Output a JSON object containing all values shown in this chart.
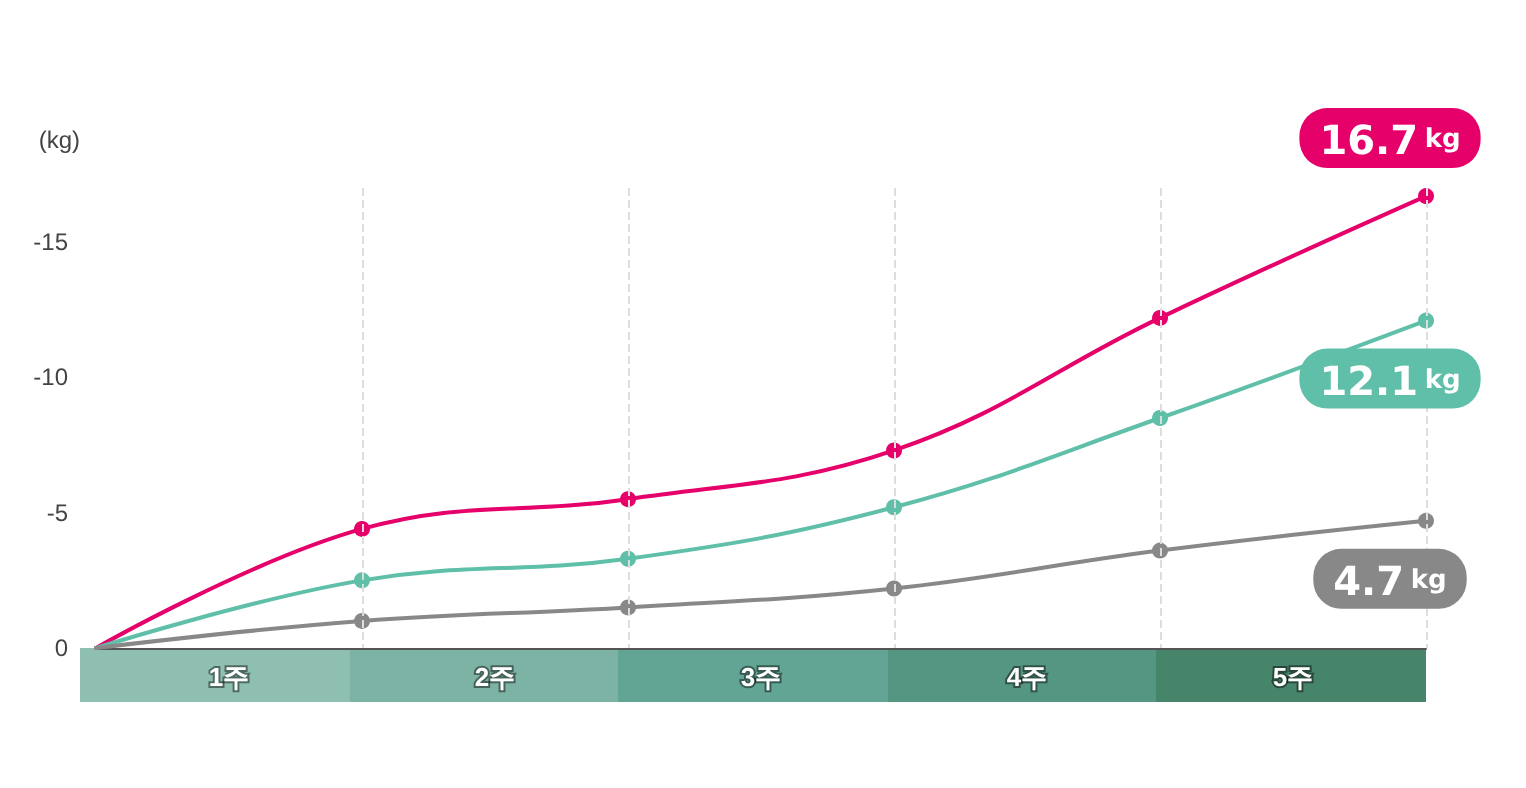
{
  "chart_data": {
    "type": "line",
    "ylabel": "(kg)",
    "x": [
      0,
      1,
      2,
      3,
      4,
      5
    ],
    "xlim": [
      0,
      5
    ],
    "xticks": [
      {
        "value": 0.5,
        "label": "1주"
      },
      {
        "value": 1.5,
        "label": "2주"
      },
      {
        "value": 2.5,
        "label": "3주"
      },
      {
        "value": 3.5,
        "label": "4주"
      },
      {
        "value": 4.5,
        "label": "5주"
      }
    ],
    "ylim": [
      0,
      -17
    ],
    "yticks": [
      0,
      -5,
      -10,
      -15
    ],
    "series": [
      {
        "color": "#e5006a",
        "values": [
          0,
          -4.4,
          -5.5,
          -7.3,
          -12.2,
          -16.7
        ]
      },
      {
        "color": "#5fbfa8",
        "values": [
          0,
          -2.5,
          -3.3,
          -5.2,
          -8.5,
          -12.1
        ]
      },
      {
        "color": "#888888",
        "values": [
          0,
          -1.0,
          -1.5,
          -2.2,
          -3.6,
          -4.7
        ]
      }
    ],
    "annotations": [
      "16.7 kg",
      "12.1 kg",
      "4.7 kg"
    ],
    "ref_lines": [
      {
        "axis": "x",
        "value": 1,
        "color": "#dddddd",
        "line_style": "dashed"
      },
      {
        "axis": "x",
        "value": 2,
        "color": "#dddddd",
        "line_style": "dashed"
      },
      {
        "axis": "x",
        "value": 3,
        "color": "#dddddd",
        "line_style": "dashed"
      },
      {
        "axis": "x",
        "value": 4,
        "color": "#dddddd",
        "line_style": "dashed"
      },
      {
        "axis": "x",
        "value": 5,
        "color": "#dddddd",
        "line_style": "dashed"
      }
    ],
    "grid": false,
    "marker": "circle",
    "line_style": "solid"
  }
}
